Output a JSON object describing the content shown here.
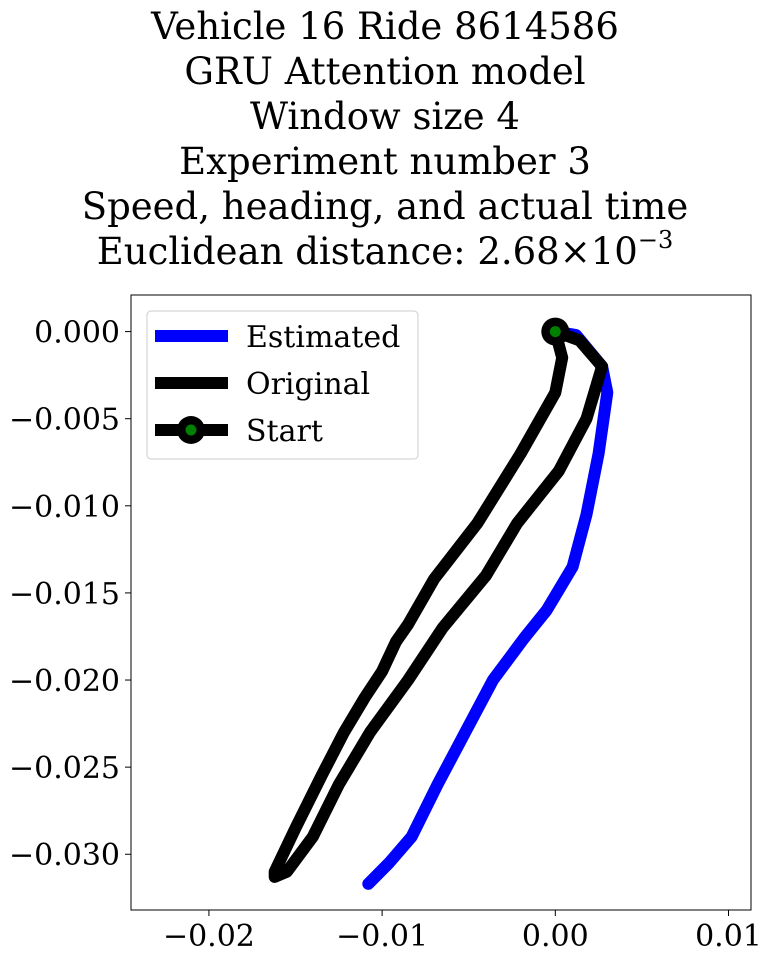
{
  "title_lines": [
    "Vehicle 16 Ride 8614586",
    "GRU Attention model",
    "Window size 4",
    "Experiment number 3",
    "Speed, heading, and actual time"
  ],
  "distance_line": {
    "prefix": "Euclidean distance: ",
    "mantissa": "2.68",
    "times": "×",
    "base": "10",
    "exponent": "−3"
  },
  "chart_data": {
    "type": "line",
    "xlim": [
      -0.0245,
      0.0113
    ],
    "ylim": [
      -0.0332,
      0.0021
    ],
    "xticks": [
      -0.02,
      -0.01,
      0.0,
      0.01
    ],
    "xtick_labels": [
      "−0.02",
      "−0.01",
      "0.00",
      "0.01"
    ],
    "yticks": [
      0.0,
      -0.005,
      -0.01,
      -0.015,
      -0.02,
      -0.025,
      -0.03
    ],
    "ytick_labels": [
      "0.000",
      "−0.005",
      "−0.010",
      "−0.015",
      "−0.020",
      "−0.025",
      "−0.030"
    ],
    "grid": false,
    "legend_position": "top-left",
    "series": [
      {
        "name": "Estimated",
        "color": "#0000ff",
        "x": [
          0.0,
          0.0012,
          0.0027,
          0.003,
          0.0025,
          0.0018,
          0.001,
          -0.0005,
          -0.0018,
          -0.0036,
          -0.0052,
          -0.0068,
          -0.0083,
          -0.0096,
          -0.0108
        ],
        "y": [
          0.0,
          -0.0002,
          -0.002,
          -0.0035,
          -0.007,
          -0.0105,
          -0.0135,
          -0.016,
          -0.0176,
          -0.02,
          -0.023,
          -0.026,
          -0.029,
          -0.0305,
          -0.0317
        ]
      },
      {
        "name": "Original",
        "color": "#000000",
        "x": [
          0.0,
          0.0014,
          0.0027,
          0.0018,
          0.0002,
          -0.0022,
          -0.004,
          -0.0065,
          -0.0085,
          -0.0107,
          -0.0125,
          -0.014,
          -0.0155,
          -0.0162,
          -0.0162,
          -0.015,
          -0.0135,
          -0.0122,
          -0.011,
          -0.01,
          -0.0092,
          -0.0085,
          -0.007,
          -0.0045,
          -0.002,
          0.0,
          0.0004,
          0.0
        ],
        "y": [
          0.0,
          -0.0005,
          -0.002,
          -0.005,
          -0.008,
          -0.011,
          -0.014,
          -0.017,
          -0.02,
          -0.023,
          -0.026,
          -0.029,
          -0.031,
          -0.0313,
          -0.031,
          -0.0285,
          -0.0255,
          -0.023,
          -0.021,
          -0.0195,
          -0.0178,
          -0.0168,
          -0.0142,
          -0.011,
          -0.007,
          -0.0035,
          -0.0015,
          0.0
        ]
      }
    ],
    "start": {
      "name": "Start",
      "x": 0.0,
      "y": 0.0,
      "edge_color": "#000000",
      "face_color": "#008000"
    }
  }
}
